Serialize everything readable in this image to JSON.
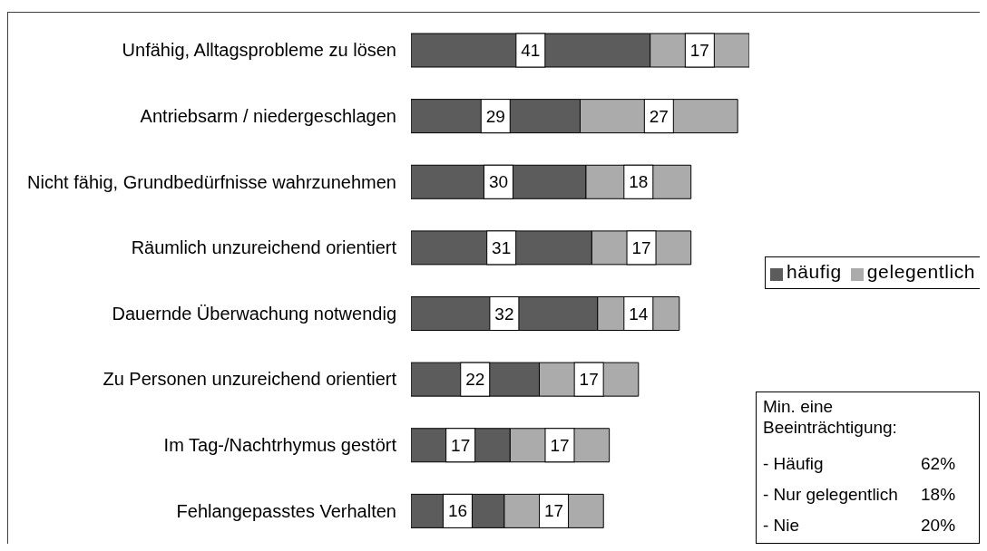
{
  "chart_data": {
    "type": "bar",
    "orientation": "horizontal",
    "stacked": true,
    "categories": [
      "Unfähig, Alltagsprobleme zu lösen",
      "Antriebsarm / niedergeschlagen",
      "Nicht fähig, Grundbedürfnisse wahrzunehmen",
      "Räumlich unzureichend orientiert",
      "Dauernde Überwachung notwendig",
      "Zu Personen unzureichend orientiert",
      "Im Tag-/Nachtrhymus gestört",
      "Fehlangepasstes Verhalten"
    ],
    "series": [
      {
        "name": "häufig",
        "color": "#5c5c5c",
        "values": [
          41,
          29,
          30,
          31,
          32,
          22,
          17,
          16
        ]
      },
      {
        "name": "gelegentlich",
        "color": "#ababab",
        "values": [
          17,
          27,
          18,
          17,
          14,
          17,
          17,
          17
        ]
      }
    ],
    "data_labels": true,
    "legend": "right",
    "tick_labels": "y",
    "annotations": [
      "Min. eine Beeinträchtigung:",
      "- Häufig 62%",
      "- Nur gelegentlich 18%",
      "- Nie 20%"
    ]
  }
}
